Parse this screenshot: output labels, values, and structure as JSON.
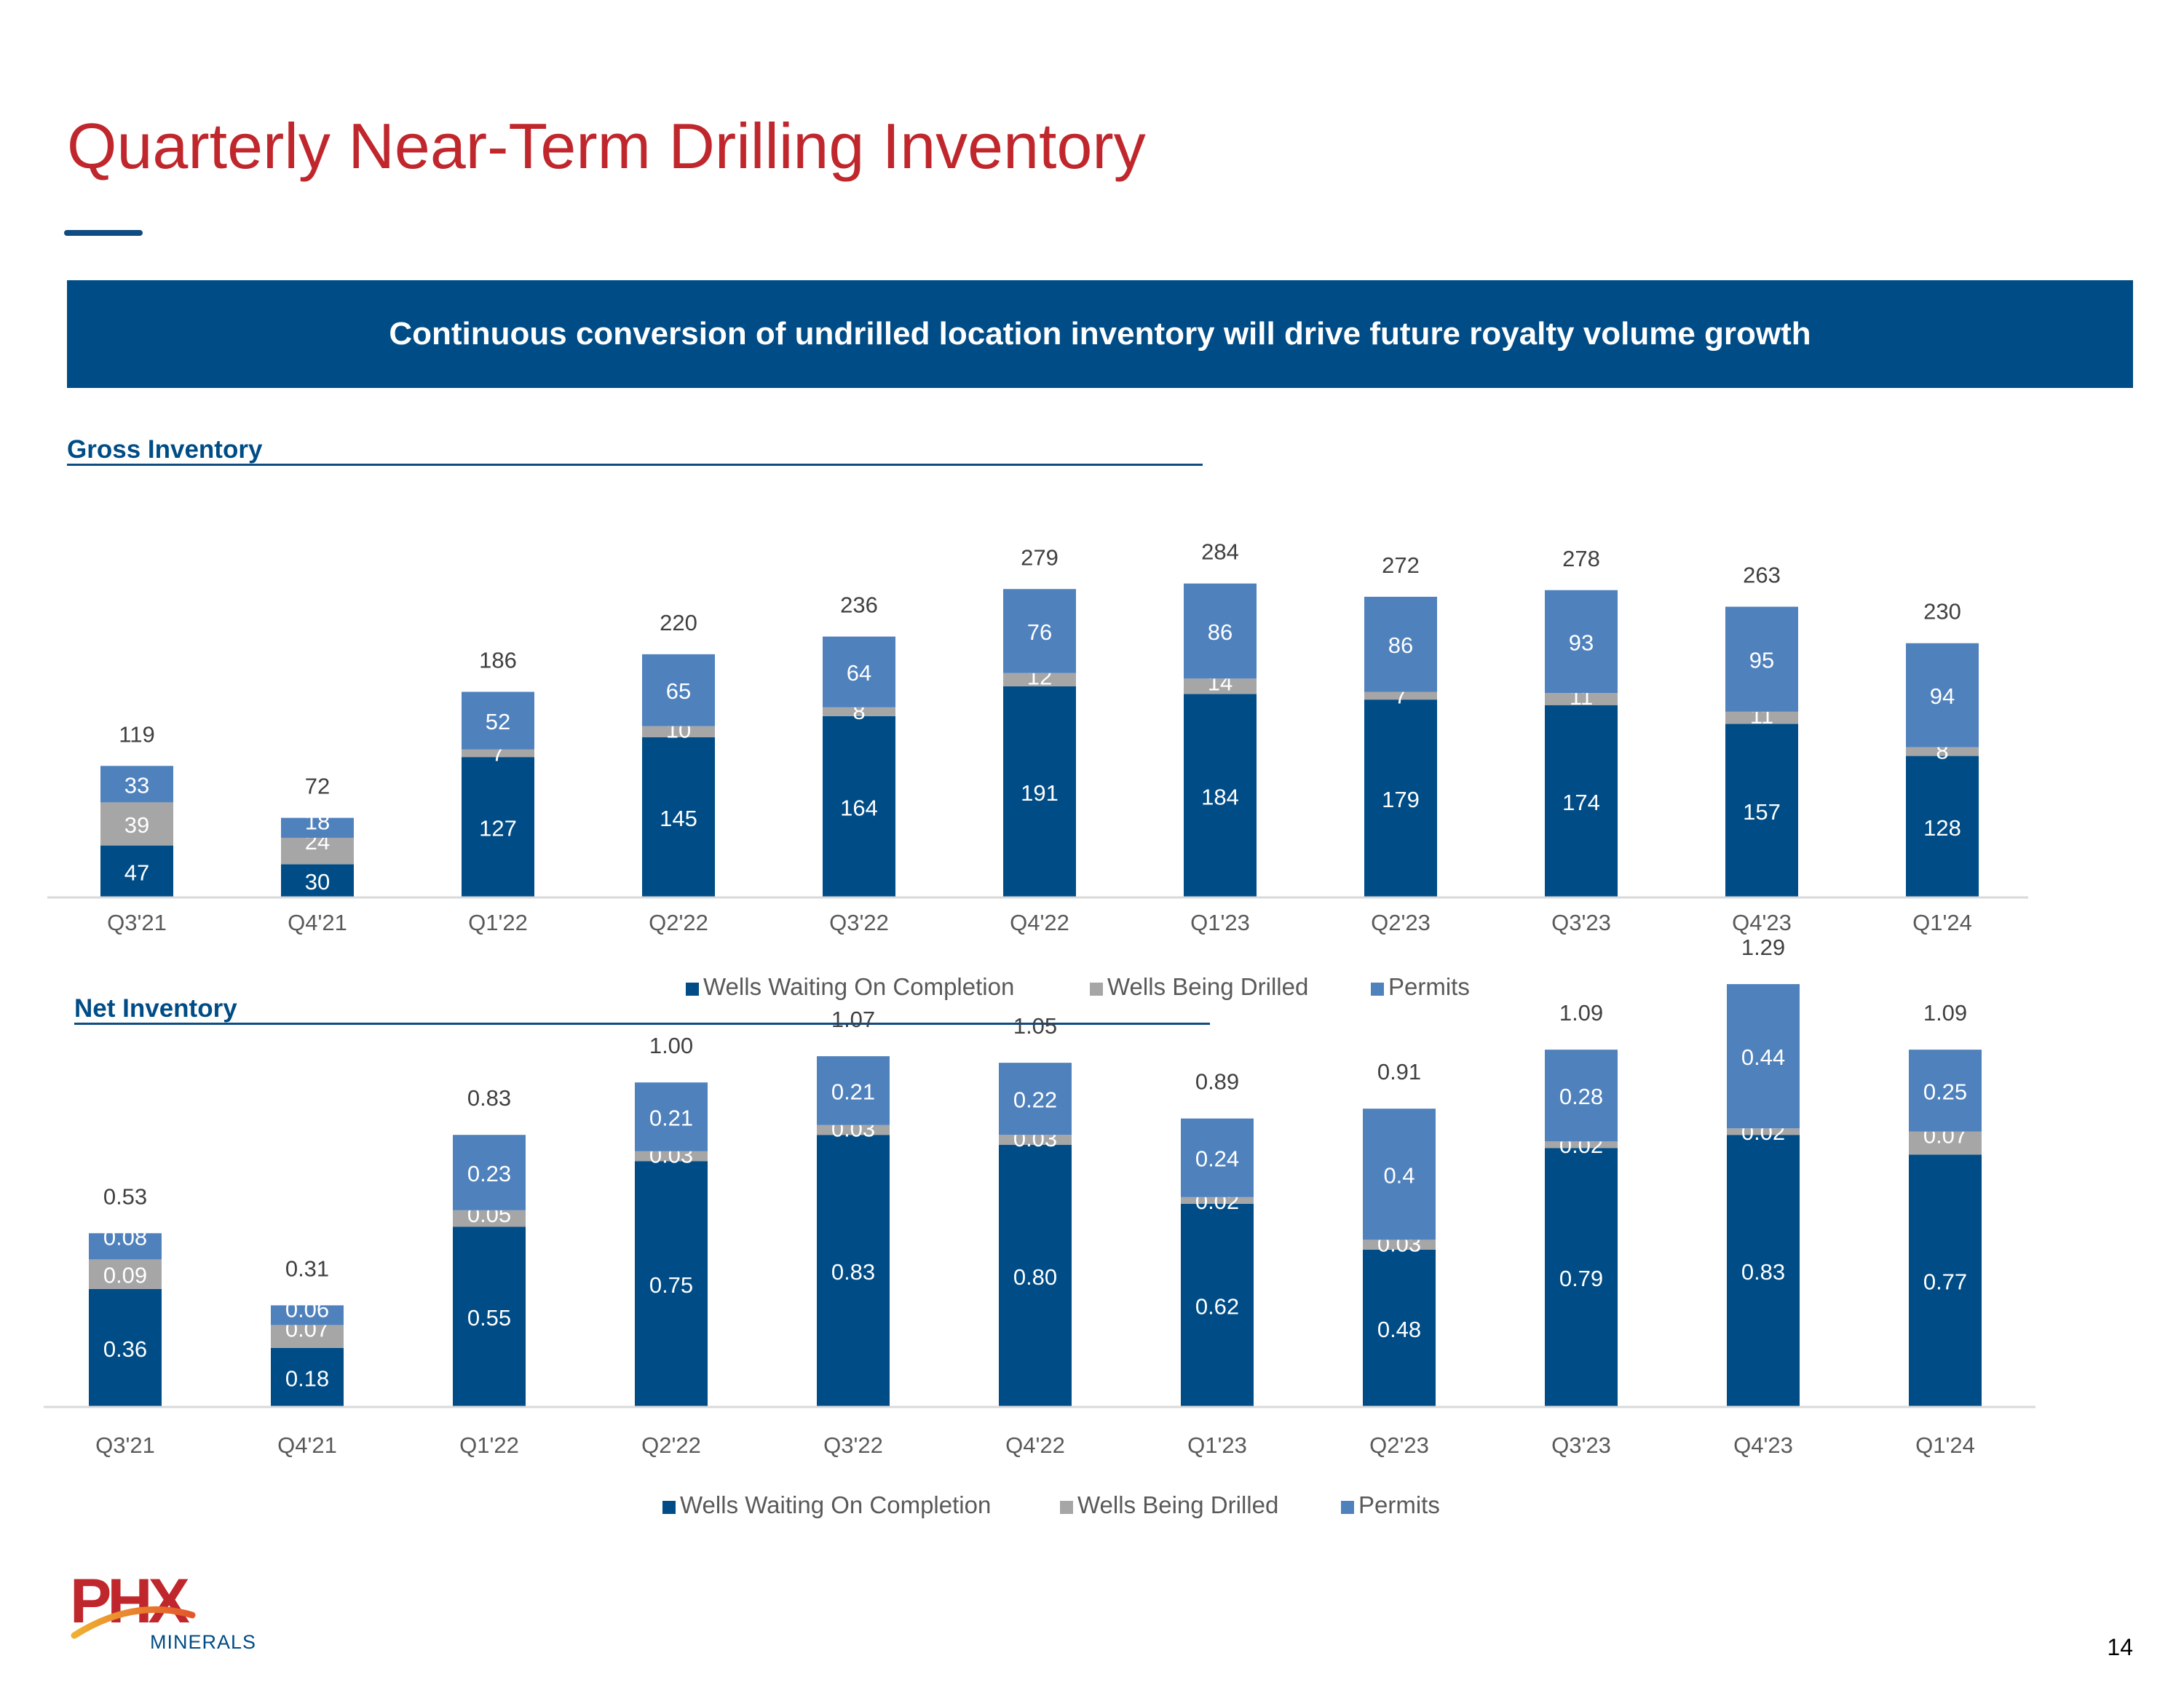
{
  "slide": {
    "title": "Quarterly Near-Term Drilling Inventory",
    "banner": "Continuous conversion of undrilled location inventory will drive future royalty volume growth",
    "page_number": "14"
  },
  "logo": {
    "wordmark": "PHX",
    "subtext": "MINERALS"
  },
  "colors": {
    "title_red": "#c0272d",
    "brand_blue": "#004c86",
    "wells_waiting": "#004c86",
    "wells_drilling": "#a6a6a6",
    "permits": "#4f81bd"
  },
  "chart_data": [
    {
      "type": "bar",
      "stacked": true,
      "title": "Gross Inventory",
      "categories": [
        "Q3'21",
        "Q4'21",
        "Q1'22",
        "Q2'22",
        "Q3'22",
        "Q4'22",
        "Q1'23",
        "Q2'23",
        "Q3'23",
        "Q4'23",
        "Q1'24"
      ],
      "series": [
        {
          "name": "Wells Waiting On Completion",
          "color": "#004c86",
          "values": [
            47,
            30,
            127,
            145,
            164,
            191,
            184,
            179,
            174,
            157,
            128
          ]
        },
        {
          "name": "Wells Being Drilled",
          "color": "#a6a6a6",
          "values": [
            39,
            24,
            7,
            10,
            8,
            12,
            14,
            7,
            11,
            11,
            8
          ]
        },
        {
          "name": "Permits",
          "color": "#4f81bd",
          "values": [
            33,
            18,
            52,
            65,
            64,
            76,
            86,
            86,
            93,
            95,
            94
          ]
        }
      ],
      "totals": [
        "119",
        "72",
        "186",
        "220",
        "236",
        "279",
        "284",
        "272",
        "278",
        "263",
        "230"
      ],
      "value_labels": [
        [
          "47",
          "30",
          "127",
          "145",
          "164",
          "191",
          "184",
          "179",
          "174",
          "157",
          "128"
        ],
        [
          "39",
          "24",
          "7",
          "10",
          "8",
          "12",
          "14",
          "7",
          "11",
          "11",
          "8"
        ],
        [
          "33",
          "18",
          "52",
          "65",
          "64",
          "76",
          "86",
          "86",
          "93",
          "95",
          "94"
        ]
      ],
      "ylim": [
        0,
        320
      ],
      "legend": "bottom-center",
      "grid": false
    },
    {
      "type": "bar",
      "stacked": true,
      "title": "Net Inventory",
      "categories": [
        "Q3'21",
        "Q4'21",
        "Q1'22",
        "Q2'22",
        "Q3'22",
        "Q4'22",
        "Q1'23",
        "Q2'23",
        "Q3'23",
        "Q4'23",
        "Q1'24"
      ],
      "series": [
        {
          "name": "Wells Waiting On Completion",
          "color": "#004c86",
          "values": [
            0.36,
            0.18,
            0.55,
            0.75,
            0.83,
            0.8,
            0.62,
            0.48,
            0.79,
            0.83,
            0.77
          ]
        },
        {
          "name": "Wells Being Drilled",
          "color": "#a6a6a6",
          "values": [
            0.09,
            0.07,
            0.05,
            0.03,
            0.03,
            0.03,
            0.02,
            0.03,
            0.02,
            0.02,
            0.07
          ]
        },
        {
          "name": "Permits",
          "color": "#4f81bd",
          "values": [
            0.08,
            0.06,
            0.23,
            0.21,
            0.21,
            0.22,
            0.24,
            0.4,
            0.28,
            0.44,
            0.25
          ]
        }
      ],
      "totals": [
        "0.53",
        "0.31",
        "0.83",
        "1.00",
        "1.07",
        "1.05",
        "0.89",
        "0.91",
        "1.09",
        "1.29",
        "1.09"
      ],
      "value_labels": [
        [
          "0.36",
          "0.18",
          "0.55",
          "0.75",
          "0.83",
          "0.80",
          "0.62",
          "0.48",
          "0.79",
          "0.83",
          "0.77"
        ],
        [
          "0.09",
          "0.07",
          "0.05",
          "0.03",
          "0.03",
          "0.03",
          "0.02",
          "0.03",
          "0.02",
          "0.02",
          "0.07"
        ],
        [
          "0.08",
          "0.06",
          "0.23",
          "0.21",
          "0.21",
          "0.22",
          "0.24",
          "0.4",
          "0.28",
          "0.44",
          "0.25"
        ]
      ],
      "ylim": [
        0,
        1.45
      ],
      "legend": "bottom-center",
      "grid": false
    }
  ]
}
